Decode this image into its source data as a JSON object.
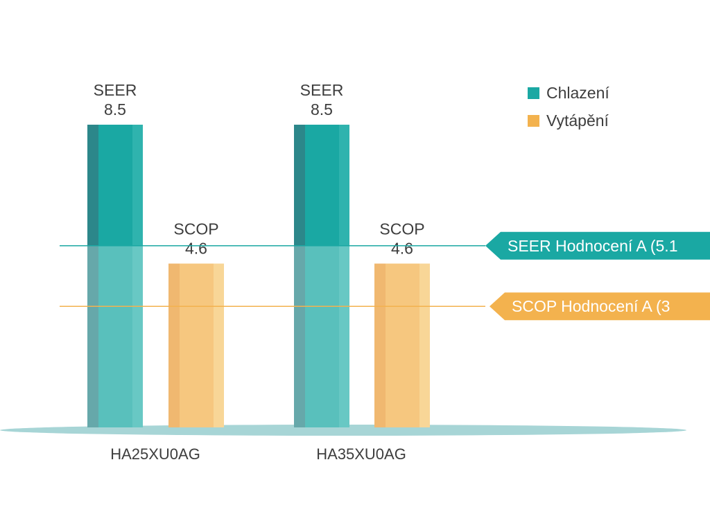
{
  "chart_data": {
    "type": "bar",
    "categories": [
      "HA25XU0AG",
      "HA35XU0AG"
    ],
    "series": [
      {
        "name": "Chlazení",
        "metric": "SEER",
        "values": [
          8.5,
          8.5
        ],
        "color": "#1aa8a3"
      },
      {
        "name": "Vytápění",
        "metric": "SCOP",
        "values": [
          4.6,
          4.6
        ],
        "color": "#f3b24e"
      }
    ],
    "ylim": [
      0,
      10
    ],
    "reference_lines": [
      {
        "label": "SEER Hodnocení A (5.1",
        "value": 5.1,
        "color": "#1aa8a3"
      },
      {
        "label": "SCOP Hodnocení A (3",
        "value": 3.4,
        "color": "#f3b24e"
      }
    ],
    "legend_position": "top-right",
    "grid": false
  }
}
